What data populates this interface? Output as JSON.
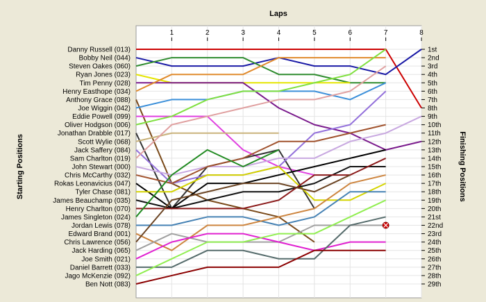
{
  "chart_data": {
    "type": "line",
    "xlabel": "Laps",
    "ylabel": "Starting Positions",
    "y2label": "Finishing Positions",
    "x_ticks": [
      "1",
      "2",
      "3",
      "4",
      "5",
      "6",
      "7",
      "8"
    ],
    "x_range": [
      0,
      8
    ],
    "y_range": [
      1,
      29
    ],
    "grid": true,
    "finishing_labels": [
      "1st",
      "2nd",
      "3rd",
      "4th",
      "5th",
      "6th",
      "7th",
      "8th",
      "9th",
      "10th",
      "11th",
      "12th",
      "13th",
      "14th",
      "15th",
      "16th",
      "17th",
      "18th",
      "19th",
      "20th",
      "21st",
      "22nd",
      "23rd",
      "24th",
      "25th",
      "26th",
      "27th",
      "28th",
      "29th"
    ],
    "series": [
      {
        "name": "Danny Russell (013)",
        "color": "#cc0000",
        "positions": [
          1,
          1,
          1,
          1,
          1,
          1,
          1,
          1,
          8
        ]
      },
      {
        "name": "Bobby Neil (044)",
        "color": "#1a1aa6",
        "positions": [
          2,
          3,
          3,
          3,
          2,
          3,
          3,
          4,
          1
        ]
      },
      {
        "name": "Steven Oakes (060)",
        "color": "#2e8b2e",
        "positions": [
          3,
          2,
          2,
          2,
          4,
          4,
          5,
          5,
          null
        ]
      },
      {
        "name": "Ryan Jones (023)",
        "color": "#e5e500",
        "positions": [
          4,
          5,
          5,
          5,
          5,
          5,
          5,
          null,
          null
        ]
      },
      {
        "name": "Tim Penny (028)",
        "color": "#7a1a8c",
        "positions": [
          5,
          5,
          5,
          5,
          8,
          10,
          11,
          13,
          12
        ]
      },
      {
        "name": "Henry Easthope (034)",
        "color": "#e08a2c",
        "positions": [
          6,
          4,
          4,
          4,
          2,
          2,
          2,
          2,
          null
        ]
      },
      {
        "name": "Anthony Grace (088)",
        "color": "#7a4a1a",
        "positions": [
          7,
          17,
          19,
          20,
          21,
          24,
          null,
          null,
          null
        ]
      },
      {
        "name": "Joe Wiggin (042)",
        "color": "#3b8fd9",
        "positions": [
          8,
          7,
          7,
          6,
          6,
          6,
          7,
          5,
          null
        ]
      },
      {
        "name": "Eddie Powell (099)",
        "color": "#e040e0",
        "positions": [
          9,
          9,
          9,
          13,
          15,
          16,
          null,
          null,
          null
        ]
      },
      {
        "name": "Oliver Hodgson (006)",
        "color": "#80e040",
        "positions": [
          10,
          9,
          7,
          6,
          6,
          5,
          4,
          1,
          null
        ]
      },
      {
        "name": "Jonathan Drabble (017)",
        "color": "#333333",
        "positions": [
          11,
          20,
          15,
          14,
          13,
          20,
          null,
          null,
          null
        ]
      },
      {
        "name": "Scott Wylie (068)",
        "color": "#c9b27a",
        "positions": [
          12,
          11,
          11,
          11,
          11,
          null,
          null,
          null,
          null
        ]
      },
      {
        "name": "Jack Saffery (084)",
        "color": "#9370db",
        "positions": [
          13,
          17,
          16,
          16,
          15,
          11,
          10,
          6,
          null
        ]
      },
      {
        "name": "Sam Charlton (019)",
        "color": "#e0a0a0",
        "positions": [
          14,
          10,
          9,
          8,
          7,
          7,
          6,
          3,
          null
        ]
      },
      {
        "name": "John Stewart (000)",
        "color": "#c8a8e0",
        "positions": [
          15,
          16,
          15,
          15,
          14,
          14,
          12,
          11,
          9
        ]
      },
      {
        "name": "Chris McCarthy (032)",
        "color": "#a0522d",
        "positions": [
          16,
          17,
          15,
          14,
          12,
          12,
          11,
          10,
          null
        ]
      },
      {
        "name": "Rokas Leonavicius (047)",
        "color": "#000000",
        "positions": [
          17,
          20,
          17,
          17,
          16,
          15,
          14,
          13,
          null
        ]
      },
      {
        "name": "Tyler Chase (081)",
        "color": "#d4d400",
        "positions": [
          18,
          18,
          16,
          16,
          15,
          19,
          19,
          17,
          null
        ]
      },
      {
        "name": "James Beauchamp (035)",
        "color": "#111111",
        "positions": [
          19,
          20,
          19,
          18,
          18,
          17,
          15,
          15,
          null
        ]
      },
      {
        "name": "Henry Charlton (070)",
        "color": "#8b1a1a",
        "positions": [
          20,
          20,
          20,
          20,
          19,
          16,
          16,
          14,
          null
        ]
      },
      {
        "name": "James Singleton (024)",
        "color": "#228b22",
        "positions": [
          21,
          16,
          13,
          15,
          13,
          null,
          null,
          null,
          null
        ]
      },
      {
        "name": "Jordan Lewis (078)",
        "color": "#4682b4",
        "positions": [
          22,
          22,
          21,
          21,
          22,
          21,
          18,
          18,
          null
        ]
      },
      {
        "name": "Edward Brand (001)",
        "color": "#cd853f",
        "positions": [
          23,
          25,
          22,
          22,
          21,
          20,
          17,
          16,
          null
        ]
      },
      {
        "name": "Chris Lawrence (056)",
        "color": "#6b4423",
        "positions": [
          24,
          19,
          18,
          17,
          17,
          18,
          16,
          null,
          null
        ]
      },
      {
        "name": "Jack Harding (065)",
        "color": "#a0a0a0",
        "positions": [
          25,
          23,
          24,
          24,
          24,
          22,
          22,
          22,
          null
        ]
      },
      {
        "name": "Joe Smith (021)",
        "color": "#e020d0",
        "positions": [
          26,
          24,
          23,
          23,
          24,
          25,
          24,
          24,
          null
        ]
      },
      {
        "name": "Daniel Barrett (033)",
        "color": "#556b6b",
        "positions": [
          27,
          27,
          25,
          25,
          26,
          26,
          22,
          21,
          null
        ]
      },
      {
        "name": "Jago McKenzie (092)",
        "color": "#90ee50",
        "positions": [
          28,
          26,
          24,
          24,
          23,
          23,
          21,
          19,
          null
        ]
      },
      {
        "name": "Ben Nott (083)",
        "color": "#8b0000",
        "positions": [
          29,
          28,
          27,
          27,
          27,
          25,
          25,
          25,
          null
        ]
      }
    ],
    "annotations": [
      {
        "text": "crash",
        "series": "Jack Harding (065)",
        "lap": 7
      }
    ]
  }
}
